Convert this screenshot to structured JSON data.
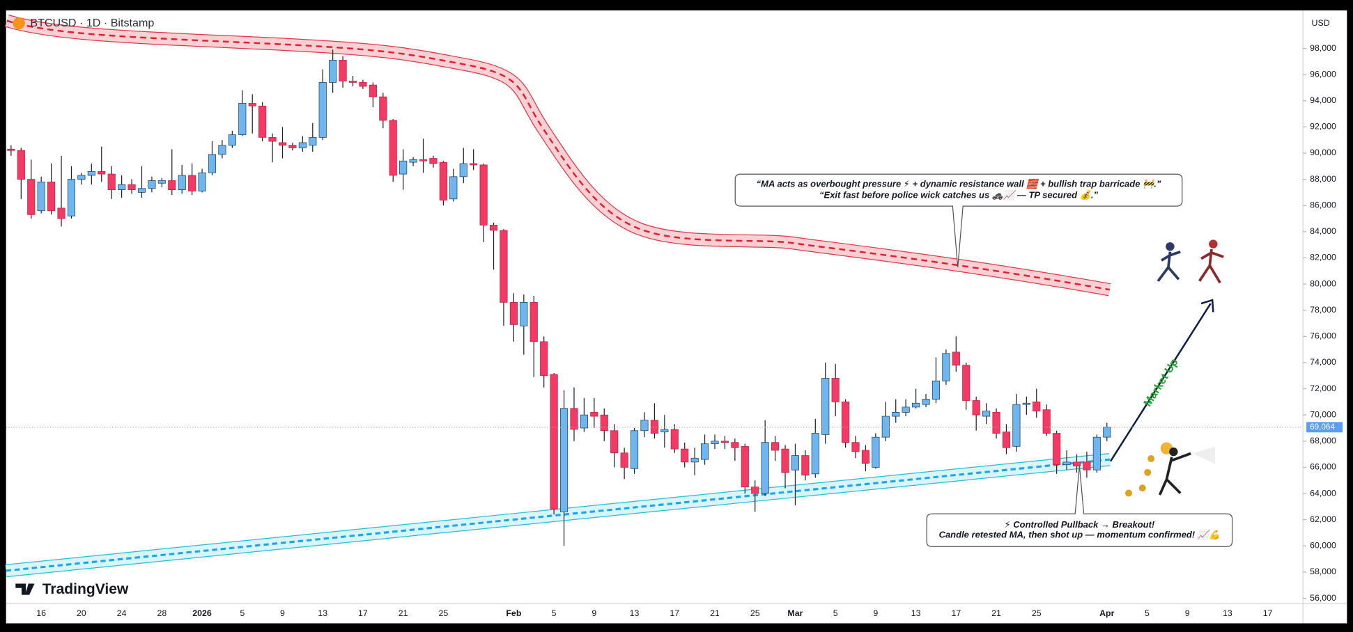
{
  "chart_data": {
    "type": "candlestick",
    "title": "BTCUSD · 1D · Bitstamp",
    "currency": "USD",
    "brand": "TradingView",
    "categories": [
      null,
      null,
      null,
      "16",
      null,
      null,
      null,
      "20",
      null,
      null,
      null,
      "24",
      null,
      null,
      null,
      "28",
      null,
      null,
      null,
      "2026",
      null,
      null,
      null,
      "5",
      null,
      null,
      null,
      "9",
      null,
      null,
      null,
      "13",
      null,
      null,
      null,
      "17",
      null,
      null,
      null,
      "21",
      null,
      null,
      null,
      "25",
      null,
      null,
      null,
      null,
      null,
      null,
      "Feb",
      null,
      null,
      null,
      "5",
      null,
      null,
      null,
      "9",
      null,
      null,
      null,
      "13",
      null,
      null,
      null,
      "17",
      null,
      null,
      null,
      "21",
      null,
      null,
      null,
      "25",
      null,
      null,
      null,
      "Mar",
      null,
      null,
      null,
      "5",
      null,
      null,
      null,
      "9",
      null,
      null,
      null,
      "13",
      null,
      null,
      null,
      "17",
      null,
      null,
      null,
      "21",
      null,
      null,
      null,
      "25",
      null,
      null,
      null,
      null,
      null,
      null,
      "Apr",
      null,
      null,
      null,
      "5",
      null,
      null,
      null,
      "9",
      null,
      null,
      null,
      "13",
      null,
      null,
      null,
      "17",
      null,
      null,
      null
    ],
    "open": [
      90300,
      90200,
      88000,
      85600,
      87800,
      85800,
      85200,
      88000,
      88300,
      88600,
      88400,
      87200,
      87600,
      87000,
      87300,
      87700,
      87900,
      87200,
      88300,
      87100,
      88500,
      89900,
      90600,
      91400,
      93800,
      93600,
      91200,
      90800,
      90600,
      90400,
      90600,
      91200,
      95400,
      97100,
      95500,
      95400,
      95200,
      94300,
      92500,
      88400,
      89300,
      89500,
      89600,
      89300,
      86500,
      88200,
      89200,
      89100,
      84500,
      84100,
      78600,
      76800,
      78600,
      75600,
      73100,
      62600,
      70500,
      69000,
      70200,
      70000,
      68800,
      67100,
      65900,
      68800,
      69600,
      68700,
      68900,
      67400,
      66400,
      66600,
      67800,
      68000,
      67900,
      67600,
      64500,
      64000,
      67900,
      67400,
      65800,
      66900,
      65500,
      68500,
      72800,
      71000,
      67900,
      67300,
      66000,
      68300,
      69900,
      70200,
      70600,
      70800,
      71200,
      72600,
      74800,
      73800,
      71100,
      69900,
      70200,
      68700,
      67600,
      70800,
      71000,
      70400,
      68600,
      66200,
      66400,
      66400,
      65800,
      68300,
      null,
      null,
      null,
      null,
      null,
      null,
      null,
      null,
      null,
      null,
      null,
      null,
      null,
      null,
      null,
      null,
      null,
      null,
      null
    ],
    "high": [
      90600,
      90400,
      89500,
      88200,
      89200,
      89800,
      89000,
      88500,
      89200,
      90500,
      89000,
      88300,
      88000,
      89000,
      88200,
      88100,
      90300,
      89100,
      89200,
      88800,
      90900,
      91000,
      91700,
      94800,
      94500,
      93900,
      91500,
      92000,
      90800,
      91300,
      92300,
      96400,
      97900,
      97400,
      95900,
      95600,
      95400,
      94600,
      92600,
      90300,
      89700,
      91100,
      89800,
      89400,
      88800,
      90400,
      90300,
      89200,
      84700,
      84200,
      79300,
      79200,
      79100,
      76000,
      73200,
      71900,
      72100,
      71300,
      71300,
      70500,
      69300,
      67500,
      69000,
      70200,
      70900,
      70000,
      69300,
      67900,
      67500,
      68500,
      68500,
      68400,
      68200,
      67800,
      65000,
      69600,
      68400,
      67700,
      67800,
      67300,
      69700,
      74000,
      73900,
      71200,
      68400,
      67700,
      68600,
      71000,
      71200,
      71200,
      72000,
      71600,
      74400,
      75000,
      76000,
      74000,
      71400,
      70900,
      70500,
      69300,
      71600,
      71400,
      72000,
      70800,
      68800,
      67300,
      67000,
      67200,
      68500,
      69400,
      null,
      null,
      null,
      null,
      null,
      null,
      null,
      null,
      null,
      null,
      null,
      null,
      null,
      null,
      null,
      null,
      null,
      null,
      null
    ],
    "low": [
      89800,
      86500,
      85000,
      85400,
      85300,
      84400,
      85000,
      87600,
      87600,
      87800,
      86500,
      86600,
      86900,
      86600,
      87000,
      87400,
      86800,
      86900,
      86800,
      87000,
      88300,
      89600,
      90400,
      91300,
      91500,
      90900,
      89300,
      89600,
      90200,
      90100,
      90100,
      91000,
      94600,
      95000,
      95100,
      94900,
      93500,
      91900,
      87800,
      87200,
      89000,
      88500,
      88900,
      86000,
      86300,
      87700,
      88700,
      83200,
      81100,
      76800,
      75600,
      74600,
      72900,
      72100,
      62400,
      60000,
      68000,
      68700,
      69000,
      68000,
      66000,
      65100,
      65500,
      68300,
      68200,
      67500,
      67100,
      66000,
      65400,
      66200,
      67400,
      67400,
      66500,
      64000,
      62600,
      63800,
      66500,
      64400,
      63100,
      65000,
      65200,
      67800,
      69900,
      67500,
      66700,
      65700,
      65900,
      68000,
      69400,
      69900,
      70500,
      70600,
      70900,
      72300,
      73300,
      70400,
      68800,
      69300,
      68200,
      67000,
      67200,
      70000,
      69800,
      68400,
      65500,
      65800,
      65600,
      65200,
      65600,
      68000,
      null,
      null,
      null,
      null,
      null,
      null,
      null,
      null,
      null,
      null,
      null,
      null,
      null,
      null,
      null,
      null,
      null,
      null,
      null
    ],
    "close": [
      90200,
      88000,
      85300,
      87800,
      85600,
      85000,
      88000,
      88300,
      88600,
      88400,
      87200,
      87600,
      87200,
      87300,
      87900,
      87900,
      87200,
      88300,
      87100,
      88500,
      89900,
      90600,
      91400,
      93800,
      93600,
      91200,
      90900,
      90600,
      90400,
      90800,
      91200,
      95400,
      97100,
      95500,
      95400,
      95100,
      94300,
      92500,
      88300,
      89400,
      89500,
      89400,
      89200,
      86400,
      88200,
      89200,
      89100,
      84500,
      84100,
      78600,
      76900,
      78600,
      75600,
      73000,
      62800,
      70500,
      68900,
      70000,
      69900,
      68800,
      67100,
      66000,
      68800,
      69600,
      68600,
      68900,
      67400,
      66400,
      66700,
      67800,
      68000,
      67900,
      67500,
      64500,
      64000,
      67900,
      67300,
      65600,
      66900,
      65400,
      68600,
      72800,
      71000,
      67900,
      67200,
      66300,
      68300,
      69900,
      70200,
      70600,
      70900,
      71200,
      72600,
      74700,
      73800,
      71100,
      70000,
      70300,
      68600,
      67500,
      70800,
      70900,
      70300,
      68600,
      66200,
      66400,
      66100,
      65800,
      68300,
      69064,
      null,
      null,
      null,
      null,
      null,
      null,
      null,
      null,
      null,
      null,
      null,
      null,
      null,
      null,
      null,
      null,
      null,
      null,
      null
    ],
    "last_price_label": "69,064",
    "up_color": "#6fb6ee",
    "down_color": "#f23a64",
    "ylim": [
      55600,
      100900
    ],
    "yticks": [
      {
        "value": 56000,
        "label": "56,000"
      },
      {
        "value": 58000,
        "label": "58,000"
      },
      {
        "value": 60000,
        "label": "60,000"
      },
      {
        "value": 62000,
        "label": "62,000"
      },
      {
        "value": 64000,
        "label": "64,000"
      },
      {
        "value": 66000,
        "label": "66,000"
      },
      {
        "value": 68000,
        "label": "68,000"
      },
      {
        "value": 70000,
        "label": "70,000"
      },
      {
        "value": 72000,
        "label": "72,000"
      },
      {
        "value": 74000,
        "label": "74,000"
      },
      {
        "value": 76000,
        "label": "76,000"
      },
      {
        "value": 78000,
        "label": "78,000"
      },
      {
        "value": 80000,
        "label": "80,000"
      },
      {
        "value": 82000,
        "label": "82,000"
      },
      {
        "value": 84000,
        "label": "84,000"
      },
      {
        "value": 86000,
        "label": "86,000"
      },
      {
        "value": 88000,
        "label": "88,000"
      },
      {
        "value": 90000,
        "label": "90,000"
      },
      {
        "value": 92000,
        "label": "92,000"
      },
      {
        "value": 94000,
        "label": "94,000"
      },
      {
        "value": 96000,
        "label": "96,000"
      },
      {
        "value": 98000,
        "label": "98,000"
      }
    ],
    "grid": false,
    "annotations": [
      {
        "lines": [
          "“MA acts as overbought pressure ⚡ + dynamic resistance wall 🧱 + bullish trap barricade 🚧.”",
          "“Exit fast before police wick catches us 🚓📈 — TP secured 💰.”"
        ]
      },
      {
        "lines": [
          "⚡ Controlled Pullback → Breakout!",
          "Candle retested MA, then shot up — momentum confirmed! 📈💪"
        ]
      }
    ],
    "arrow_label": "Market Up"
  }
}
